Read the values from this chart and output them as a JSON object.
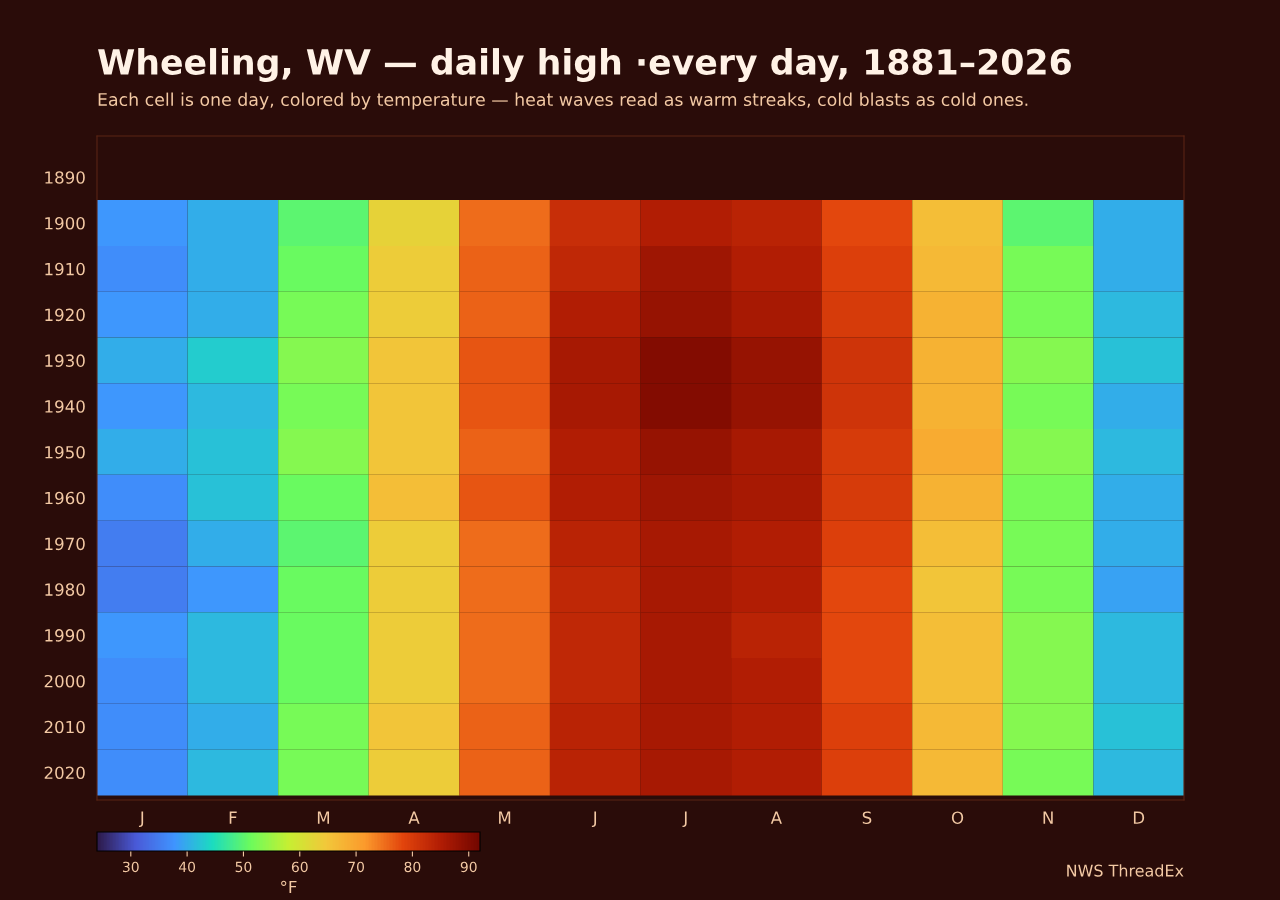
{
  "chart_data": {
    "type": "heatmap",
    "title": "Wheeling, WV — daily high ·every day, 1881–2026",
    "subtitle": "Each cell is one day, colored by temperature — heat waves read as warm streaks, cold blasts as cold ones.",
    "categories": [
      "J",
      "F",
      "M",
      "A",
      "M",
      "J",
      "J",
      "A",
      "S",
      "O",
      "N",
      "D"
    ],
    "y_categories": [
      "1890",
      "1900",
      "1910",
      "1920",
      "1930",
      "1940",
      "1950",
      "1960",
      "1970",
      "1980",
      "1990",
      "2000",
      "2010",
      "2020"
    ],
    "cells": [
      [
        null,
        null,
        null,
        null,
        null,
        null,
        null,
        null,
        null,
        null,
        null,
        null
      ],
      [
        38,
        40,
        50,
        63,
        75,
        82,
        85,
        84,
        78,
        66,
        50,
        40
      ],
      [
        37,
        40,
        51,
        64,
        76,
        83,
        87,
        85,
        79,
        67,
        52,
        40
      ],
      [
        38,
        40,
        52,
        64,
        76,
        85,
        88,
        86,
        80,
        68,
        52,
        41
      ],
      [
        40,
        43,
        53,
        65,
        77,
        86,
        90,
        88,
        81,
        68,
        53,
        42
      ],
      [
        38,
        41,
        52,
        65,
        77,
        86,
        90,
        88,
        81,
        68,
        52,
        40
      ],
      [
        40,
        42,
        53,
        65,
        76,
        85,
        88,
        86,
        80,
        69,
        53,
        41
      ],
      [
        37,
        42,
        51,
        66,
        77,
        85,
        87,
        86,
        80,
        68,
        52,
        40
      ],
      [
        35,
        40,
        50,
        64,
        75,
        84,
        86,
        85,
        79,
        66,
        52,
        40
      ],
      [
        35,
        38,
        51,
        64,
        75,
        83,
        86,
        85,
        78,
        65,
        52,
        39
      ],
      [
        38,
        41,
        51,
        64,
        75,
        83,
        86,
        84,
        78,
        66,
        53,
        41
      ],
      [
        37,
        41,
        51,
        64,
        75,
        83,
        86,
        85,
        78,
        66,
        53,
        41
      ],
      [
        37,
        40,
        52,
        65,
        76,
        84,
        86,
        85,
        79,
        67,
        53,
        42
      ],
      [
        37,
        41,
        52,
        64,
        76,
        84,
        86,
        85,
        79,
        67,
        52,
        41
      ]
    ],
    "clim": [
      24,
      92
    ],
    "cticks": [
      30,
      40,
      50,
      60,
      70,
      80,
      90
    ],
    "clabel": "°F",
    "annotations": [
      "NWS ThreadEx"
    ]
  }
}
